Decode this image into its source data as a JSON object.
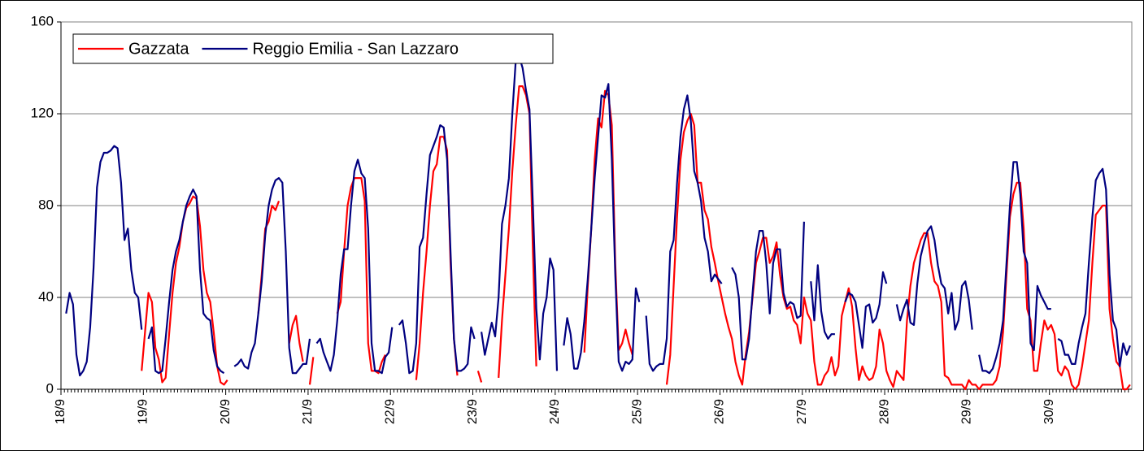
{
  "chart_data": {
    "type": "line",
    "categories": [
      "18/9",
      null,
      null,
      null,
      null,
      null,
      null,
      null,
      null,
      null,
      null,
      null,
      null,
      null,
      null,
      null,
      null,
      null,
      null,
      null,
      null,
      null,
      null,
      null,
      "19/9",
      null,
      null,
      null,
      null,
      null,
      null,
      null,
      null,
      null,
      null,
      null,
      null,
      null,
      null,
      null,
      null,
      null,
      null,
      null,
      null,
      null,
      null,
      null,
      "20/9",
      null,
      null,
      null,
      null,
      null,
      null,
      null,
      null,
      null,
      null,
      null,
      null,
      null,
      null,
      null,
      null,
      null,
      null,
      null,
      null,
      null,
      null,
      null,
      "21/9",
      null,
      null,
      null,
      null,
      null,
      null,
      null,
      null,
      null,
      null,
      null,
      null,
      null,
      null,
      null,
      null,
      null,
      null,
      null,
      null,
      null,
      null,
      null,
      "22/9",
      null,
      null,
      null,
      null,
      null,
      null,
      null,
      null,
      null,
      null,
      null,
      null,
      null,
      null,
      null,
      null,
      null,
      null,
      null,
      null,
      null,
      null,
      null,
      "23/9",
      null,
      null,
      null,
      null,
      null,
      null,
      null,
      null,
      null,
      null,
      null,
      null,
      null,
      null,
      null,
      null,
      null,
      null,
      null,
      null,
      null,
      null,
      null,
      "24/9",
      null,
      null,
      null,
      null,
      null,
      null,
      null,
      null,
      null,
      null,
      null,
      null,
      null,
      null,
      null,
      null,
      null,
      null,
      null,
      null,
      null,
      null,
      null,
      "25/9",
      null,
      null,
      null,
      null,
      null,
      null,
      null,
      null,
      null,
      null,
      null,
      null,
      null,
      null,
      null,
      null,
      null,
      null,
      null,
      null,
      null,
      null,
      null,
      "26/9",
      null,
      null,
      null,
      null,
      null,
      null,
      null,
      null,
      null,
      null,
      null,
      null,
      null,
      null,
      null,
      null,
      null,
      null,
      null,
      null,
      null,
      null,
      null,
      "27/9",
      null,
      null,
      null,
      null,
      null,
      null,
      null,
      null,
      null,
      null,
      null,
      null,
      null,
      null,
      null,
      null,
      null,
      null,
      null,
      null,
      null,
      null,
      null,
      "28/9",
      null,
      null,
      null,
      null,
      null,
      null,
      null,
      null,
      null,
      null,
      null,
      null,
      null,
      null,
      null,
      null,
      null,
      null,
      null,
      null,
      null,
      null,
      null,
      "29/9",
      null,
      null,
      null,
      null,
      null,
      null,
      null,
      null,
      null,
      null,
      null,
      null,
      null,
      null,
      null,
      null,
      null,
      null,
      null,
      null,
      null,
      null,
      null,
      "30/9",
      null,
      null,
      null,
      null,
      null,
      null,
      null,
      null,
      null,
      null,
      null,
      null,
      null,
      null,
      null,
      null,
      null,
      null,
      null,
      null,
      null,
      null,
      null
    ],
    "series": [
      {
        "name": "Gazzata",
        "color": "#ff0000",
        "values": [
          null,
          null,
          null,
          null,
          null,
          null,
          null,
          null,
          null,
          null,
          null,
          null,
          null,
          null,
          null,
          null,
          null,
          null,
          null,
          null,
          null,
          null,
          null,
          8,
          25,
          42,
          38,
          18,
          13,
          3,
          5,
          24,
          42,
          55,
          62,
          73,
          79,
          81,
          84,
          83,
          71,
          52,
          42,
          38,
          25,
          10,
          3,
          2,
          4,
          null,
          null,
          null,
          null,
          null,
          null,
          null,
          null,
          33,
          50,
          70,
          73,
          80,
          78,
          82,
          null,
          null,
          20,
          28,
          32,
          20,
          12,
          null,
          2,
          14,
          null,
          null,
          null,
          null,
          null,
          null,
          33,
          38,
          60,
          80,
          88,
          92,
          92,
          92,
          82,
          20,
          8,
          8,
          7,
          12,
          15,
          null,
          null,
          null,
          null,
          null,
          null,
          null,
          null,
          4,
          20,
          42,
          60,
          80,
          95,
          98,
          110,
          110,
          104,
          55,
          22,
          6,
          null,
          null,
          null,
          null,
          null,
          8,
          3,
          null,
          null,
          null,
          null,
          5,
          30,
          50,
          70,
          95,
          115,
          132,
          132,
          128,
          120,
          60,
          10,
          null,
          null,
          null,
          null,
          null,
          null,
          null,
          null,
          null,
          null,
          null,
          null,
          null,
          16,
          45,
          70,
          100,
          118,
          114,
          130,
          128,
          115,
          55,
          17,
          20,
          26,
          20,
          15,
          null,
          null,
          null,
          null,
          null,
          null,
          null,
          null,
          null,
          2,
          15,
          45,
          75,
          100,
          112,
          117,
          120,
          115,
          90,
          90,
          78,
          74,
          62,
          55,
          47,
          40,
          33,
          27,
          22,
          12,
          6,
          2,
          15,
          25,
          40,
          55,
          60,
          66,
          66,
          55,
          58,
          64,
          50,
          40,
          35,
          36,
          30,
          28,
          20,
          40,
          33,
          30,
          12,
          2,
          2,
          6,
          8,
          14,
          6,
          10,
          32,
          38,
          44,
          36,
          18,
          4,
          10,
          6,
          4,
          5,
          10,
          26,
          20,
          8,
          4,
          1,
          8,
          6,
          4,
          30,
          45,
          55,
          60,
          65,
          68,
          68,
          55,
          47,
          45,
          38,
          6,
          5,
          2,
          2,
          2,
          2,
          0,
          4,
          2,
          2,
          0,
          2,
          2,
          2,
          2,
          4,
          10,
          25,
          50,
          75,
          85,
          90,
          90,
          70,
          35,
          30,
          8,
          8,
          20,
          30,
          26,
          28,
          24,
          8,
          6,
          10,
          8,
          2,
          0,
          2,
          10,
          20,
          30,
          55,
          76,
          78,
          80,
          80,
          35,
          22,
          12,
          10,
          0,
          0,
          2
        ]
      },
      {
        "name": "Reggio Emilia - San Lazzaro",
        "color": "#000080",
        "values": [
          null,
          33,
          42,
          37,
          15,
          6,
          8,
          12,
          27,
          53,
          88,
          99,
          103,
          103,
          104,
          106,
          105,
          90,
          65,
          70,
          52,
          42,
          40,
          26,
          null,
          22,
          27,
          8,
          7,
          8,
          22,
          38,
          52,
          60,
          65,
          73,
          80,
          84,
          87,
          84,
          52,
          33,
          31,
          30,
          17,
          10,
          8,
          7,
          null,
          null,
          10,
          11,
          13,
          10,
          9,
          16,
          20,
          33,
          47,
          67,
          80,
          87,
          91,
          92,
          90,
          60,
          18,
          7,
          7,
          9,
          11,
          11,
          22,
          null,
          20,
          22,
          16,
          12,
          8,
          15,
          30,
          50,
          61,
          61,
          80,
          95,
          100,
          94,
          92,
          70,
          20,
          8,
          8,
          7,
          14,
          16,
          27,
          null,
          28,
          30,
          20,
          7,
          8,
          20,
          62,
          66,
          85,
          102,
          106,
          110,
          115,
          114,
          100,
          60,
          22,
          8,
          8,
          9,
          11,
          27,
          22,
          null,
          25,
          15,
          22,
          29,
          23,
          40,
          72,
          80,
          92,
          120,
          143,
          145,
          140,
          130,
          122,
          80,
          35,
          13,
          33,
          40,
          57,
          52,
          8,
          null,
          19,
          31,
          24,
          9,
          9,
          16,
          30,
          48,
          70,
          92,
          110,
          128,
          127,
          133,
          100,
          50,
          12,
          8,
          12,
          11,
          13,
          44,
          38,
          null,
          32,
          11,
          8,
          10,
          11,
          11,
          22,
          60,
          65,
          90,
          110,
          122,
          128,
          117,
          95,
          90,
          82,
          66,
          60,
          47,
          50,
          48,
          46,
          null,
          null,
          53,
          50,
          40,
          13,
          13,
          22,
          42,
          60,
          69,
          69,
          55,
          33,
          55,
          61,
          61,
          42,
          36,
          38,
          37,
          31,
          32,
          73,
          null,
          47,
          30,
          54,
          34,
          25,
          22,
          24,
          24,
          null,
          null,
          38,
          42,
          41,
          38,
          28,
          18,
          36,
          37,
          29,
          31,
          37,
          51,
          46,
          null,
          null,
          37,
          30,
          35,
          39,
          29,
          28,
          46,
          58,
          64,
          69,
          71,
          65,
          54,
          46,
          44,
          33,
          42,
          26,
          30,
          45,
          47,
          39,
          26,
          null,
          15,
          8,
          8,
          7,
          9,
          14,
          20,
          30,
          55,
          80,
          99,
          99,
          85,
          60,
          55,
          20,
          17,
          45,
          41,
          38,
          35,
          35,
          null,
          22,
          21,
          15,
          15,
          11,
          11,
          20,
          27,
          33,
          55,
          75,
          91,
          94,
          96,
          87,
          50,
          30,
          26,
          10,
          20,
          15,
          19
        ]
      }
    ],
    "ylim": [
      0,
      160
    ],
    "yticks": [
      0,
      40,
      80,
      120,
      160
    ],
    "grid": true,
    "legend": "upper left"
  }
}
